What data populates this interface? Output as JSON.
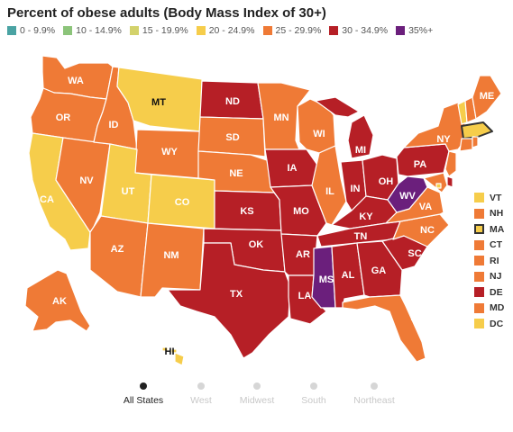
{
  "title": "Percent of obese adults (Body Mass Index of 30+)",
  "legend": [
    {
      "label": "0 - 9.9%",
      "color": "#4aa3a3"
    },
    {
      "label": "10 - 14.9%",
      "color": "#8cc47a"
    },
    {
      "label": "15 - 19.9%",
      "color": "#d3d26b"
    },
    {
      "label": "20 - 24.9%",
      "color": "#f6cd4b"
    },
    {
      "label": "25 - 29.9%",
      "color": "#ef7a36"
    },
    {
      "label": "30 - 34.9%",
      "color": "#b61f26"
    },
    {
      "label": "35%+",
      "color": "#6b1f7c"
    }
  ],
  "states": {
    "WA": "#ef7a36",
    "OR": "#ef7a36",
    "CA": "#f6cd4b",
    "NV": "#ef7a36",
    "ID": "#ef7a36",
    "MT": "#f6cd4b",
    "WY": "#ef7a36",
    "UT": "#f6cd4b",
    "CO": "#f6cd4b",
    "AZ": "#ef7a36",
    "NM": "#ef7a36",
    "ND": "#b61f26",
    "SD": "#ef7a36",
    "NE": "#ef7a36",
    "KS": "#b61f26",
    "OK": "#b61f26",
    "TX": "#b61f26",
    "MN": "#ef7a36",
    "IA": "#b61f26",
    "MO": "#b61f26",
    "AR": "#b61f26",
    "LA": "#b61f26",
    "WI": "#ef7a36",
    "IL": "#ef7a36",
    "MI": "#b61f26",
    "IN": "#b61f26",
    "OH": "#b61f26",
    "KY": "#b61f26",
    "TN": "#b61f26",
    "MS": "#6b1f7c",
    "AL": "#b61f26",
    "GA": "#b61f26",
    "FL": "#ef7a36",
    "SC": "#b61f26",
    "NC": "#ef7a36",
    "VA": "#ef7a36",
    "WV": "#6b1f7c",
    "PA": "#b61f26",
    "NY": "#ef7a36",
    "ME": "#ef7a36",
    "VT": "#f6cd4b",
    "NH": "#ef7a36",
    "MA": "#f6cd4b",
    "CT": "#ef7a36",
    "RI": "#ef7a36",
    "NJ": "#ef7a36",
    "DE": "#b61f26",
    "MD": "#ef7a36",
    "DC": "#f6cd4b",
    "AK": "#ef7a36",
    "HI": "#f6cd4b"
  },
  "side_states": [
    {
      "code": "VT",
      "color": "#f6cd4b",
      "selected": false
    },
    {
      "code": "NH",
      "color": "#ef7a36",
      "selected": false
    },
    {
      "code": "MA",
      "color": "#f6cd4b",
      "selected": true
    },
    {
      "code": "CT",
      "color": "#ef7a36",
      "selected": false
    },
    {
      "code": "RI",
      "color": "#ef7a36",
      "selected": false
    },
    {
      "code": "NJ",
      "color": "#ef7a36",
      "selected": false
    },
    {
      "code": "DE",
      "color": "#b61f26",
      "selected": false
    },
    {
      "code": "MD",
      "color": "#ef7a36",
      "selected": false
    },
    {
      "code": "DC",
      "color": "#f6cd4b",
      "selected": false
    }
  ],
  "tabs": [
    {
      "label": "All States",
      "active": true
    },
    {
      "label": "West",
      "active": false
    },
    {
      "label": "Midwest",
      "active": false
    },
    {
      "label": "South",
      "active": false
    },
    {
      "label": "Northeast",
      "active": false
    }
  ]
}
